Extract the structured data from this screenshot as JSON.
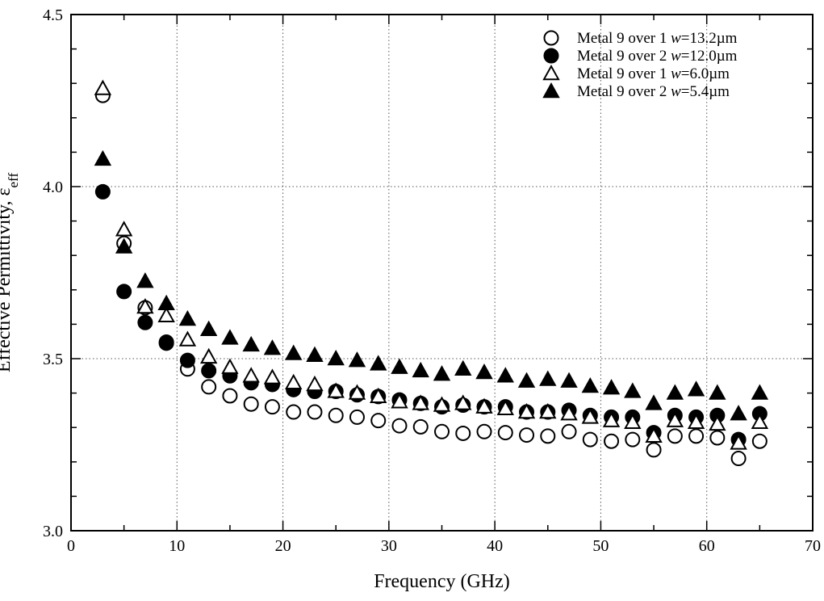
{
  "chart_data": {
    "type": "scatter",
    "title": "",
    "xlabel": "Frequency (GHz)",
    "ylabel": {
      "main": "Effective Permittivity, ε",
      "sub": "eff"
    },
    "xlim": [
      0,
      70
    ],
    "ylim": [
      3.0,
      4.5
    ],
    "x_ticks": [
      0,
      10,
      20,
      30,
      40,
      50,
      60,
      70
    ],
    "x_tick_labels": [
      "0",
      "10",
      "20",
      "30",
      "40",
      "50",
      "60",
      "70"
    ],
    "y_ticks": [
      3.0,
      3.5,
      4.0,
      4.5
    ],
    "y_tick_labels": [
      "3.0",
      "3.5",
      "4.0",
      "4.5"
    ],
    "grid": "dotted",
    "legend_position": "top-right",
    "series": [
      {
        "name": "Metal 9 over 1 w=13.2µm",
        "label_parts": [
          "Metal 9 over 1 ",
          "w",
          "=13.2µm"
        ],
        "marker": "circle-open",
        "x": [
          3,
          5,
          7,
          9,
          11,
          13,
          15,
          17,
          19,
          21,
          23,
          25,
          27,
          29,
          31,
          33,
          35,
          37,
          39,
          41,
          43,
          45,
          47,
          49,
          51,
          53,
          55,
          57,
          59,
          61,
          63,
          65
        ],
        "y": [
          4.265,
          3.835,
          3.648,
          3.548,
          3.47,
          3.418,
          3.392,
          3.368,
          3.36,
          3.345,
          3.345,
          3.335,
          3.33,
          3.32,
          3.305,
          3.302,
          3.288,
          3.283,
          3.288,
          3.285,
          3.278,
          3.275,
          3.288,
          3.265,
          3.26,
          3.265,
          3.235,
          3.275,
          3.275,
          3.27,
          3.21,
          3.26
        ]
      },
      {
        "name": "Metal 9 over 2 w=12.0µm",
        "label_parts": [
          "Metal 9 over 2 ",
          "w",
          "=12.0µm"
        ],
        "marker": "circle-filled",
        "x": [
          3,
          5,
          7,
          9,
          11,
          13,
          15,
          17,
          19,
          21,
          23,
          25,
          27,
          29,
          31,
          33,
          35,
          37,
          39,
          41,
          43,
          45,
          47,
          49,
          51,
          53,
          55,
          57,
          59,
          61,
          63,
          65
        ],
        "y": [
          3.985,
          3.695,
          3.605,
          3.545,
          3.495,
          3.465,
          3.45,
          3.43,
          3.425,
          3.41,
          3.405,
          3.405,
          3.395,
          3.39,
          3.38,
          3.37,
          3.36,
          3.365,
          3.36,
          3.36,
          3.345,
          3.345,
          3.35,
          3.335,
          3.33,
          3.33,
          3.285,
          3.335,
          3.33,
          3.335,
          3.265,
          3.34
        ]
      },
      {
        "name": "Metal 9 over 1 w=6.0µm",
        "label_parts": [
          "Metal 9 over 1 ",
          "w",
          "=6.0µm"
        ],
        "marker": "triangle-open",
        "x": [
          3,
          5,
          7,
          9,
          11,
          13,
          15,
          17,
          19,
          21,
          23,
          25,
          27,
          29,
          31,
          33,
          35,
          37,
          39,
          41,
          43,
          45,
          47,
          49,
          51,
          53,
          55,
          57,
          59,
          61,
          63,
          65
        ],
        "y": [
          4.285,
          3.875,
          3.65,
          3.625,
          3.555,
          3.505,
          3.475,
          3.45,
          3.445,
          3.43,
          3.425,
          3.405,
          3.4,
          3.39,
          3.375,
          3.37,
          3.365,
          3.37,
          3.36,
          3.355,
          3.345,
          3.345,
          3.34,
          3.33,
          3.32,
          3.315,
          3.275,
          3.32,
          3.315,
          3.31,
          3.255,
          3.315
        ]
      },
      {
        "name": "Metal 9 over 2 w=5.4µm",
        "label_parts": [
          "Metal 9 over 2 ",
          "w",
          "=5.4µm"
        ],
        "marker": "triangle-filled",
        "x": [
          3,
          5,
          7,
          9,
          11,
          13,
          15,
          17,
          19,
          21,
          23,
          25,
          27,
          29,
          31,
          33,
          35,
          37,
          39,
          41,
          43,
          45,
          47,
          49,
          51,
          53,
          55,
          57,
          59,
          61,
          63,
          65
        ],
        "y": [
          4.08,
          3.825,
          3.725,
          3.66,
          3.615,
          3.585,
          3.56,
          3.54,
          3.53,
          3.515,
          3.51,
          3.5,
          3.495,
          3.485,
          3.475,
          3.465,
          3.455,
          3.47,
          3.46,
          3.45,
          3.435,
          3.44,
          3.435,
          3.42,
          3.415,
          3.405,
          3.37,
          3.4,
          3.41,
          3.4,
          3.34,
          3.4
        ]
      }
    ]
  }
}
